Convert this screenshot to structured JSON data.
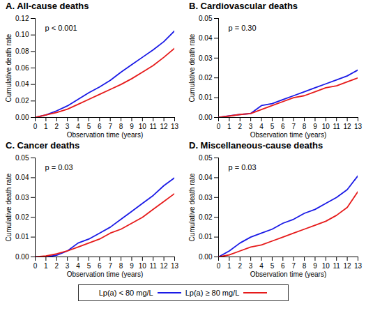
{
  "chart_data": [
    {
      "type": "line",
      "title": "A. All-cause deaths",
      "xlabel": "Observation time (years)",
      "ylabel": "Cumulative death rate",
      "x": [
        0,
        1,
        2,
        3,
        4,
        5,
        6,
        7,
        8,
        9,
        10,
        11,
        12,
        13
      ],
      "series": [
        {
          "name": "Lp(a) < 80 mg/L",
          "color": "#1a1ae6",
          "values": [
            0,
            0.003,
            0.008,
            0.014,
            0.022,
            0.03,
            0.037,
            0.045,
            0.055,
            0.064,
            0.073,
            0.082,
            0.092,
            0.105
          ]
        },
        {
          "name": "Lp(a) ≥ 80 mg/L",
          "color": "#e61a1a",
          "values": [
            0,
            0.003,
            0.006,
            0.01,
            0.016,
            0.022,
            0.028,
            0.034,
            0.04,
            0.047,
            0.055,
            0.063,
            0.073,
            0.084
          ]
        }
      ],
      "xlim": [
        0,
        13
      ],
      "xticks": [
        0,
        1,
        2,
        3,
        4,
        5,
        6,
        7,
        8,
        9,
        10,
        11,
        12,
        13
      ],
      "ylim": [
        0,
        0.12
      ],
      "yticks": [
        {
          "value": 0,
          "label": "0.00"
        },
        {
          "value": 0.02,
          "label": "0.02"
        },
        {
          "value": 0.04,
          "label": "0.04"
        },
        {
          "value": 0.06,
          "label": "0.06"
        },
        {
          "value": 0.08,
          "label": "0.08"
        },
        {
          "value": 0.1,
          "label": "0.10"
        },
        {
          "value": 0.12,
          "label": "0.12"
        }
      ],
      "annotations": [
        {
          "text": "p < 0.001"
        }
      ],
      "legend": "bottom"
    },
    {
      "type": "line",
      "title": "B. Cardiovascular deaths",
      "xlabel": "Observation time (years)",
      "ylabel": "Cumulative death rate",
      "x": [
        0,
        1,
        2,
        3,
        4,
        5,
        6,
        7,
        8,
        9,
        10,
        11,
        12,
        13
      ],
      "series": [
        {
          "name": "Lp(a) < 80 mg/L",
          "color": "#1a1ae6",
          "values": [
            0,
            0.0008,
            0.0015,
            0.002,
            0.006,
            0.007,
            0.009,
            0.011,
            0.013,
            0.015,
            0.017,
            0.019,
            0.021,
            0.024
          ]
        },
        {
          "name": "Lp(a) ≥ 80 mg/L",
          "color": "#e61a1a",
          "values": [
            0,
            0.0007,
            0.0015,
            0.002,
            0.004,
            0.006,
            0.008,
            0.01,
            0.011,
            0.013,
            0.015,
            0.016,
            0.018,
            0.02
          ]
        }
      ],
      "xlim": [
        0,
        13
      ],
      "xticks": [
        0,
        1,
        2,
        3,
        4,
        5,
        6,
        7,
        8,
        9,
        10,
        11,
        12,
        13
      ],
      "ylim": [
        0,
        0.05
      ],
      "yticks": [
        {
          "value": 0,
          "label": "0.00"
        },
        {
          "value": 0.01,
          "label": "0.01"
        },
        {
          "value": 0.02,
          "label": "0.02"
        },
        {
          "value": 0.03,
          "label": "0.03"
        },
        {
          "value": 0.04,
          "label": "0.04"
        },
        {
          "value": 0.05,
          "label": "0.05"
        }
      ],
      "annotations": [
        {
          "text": "p = 0.30"
        }
      ],
      "legend": "bottom"
    },
    {
      "type": "line",
      "title": "C. Cancer deaths",
      "xlabel": "Observation time (years)",
      "ylabel": "Cumulative death rate",
      "x": [
        0,
        1,
        2,
        3,
        4,
        5,
        6,
        7,
        8,
        9,
        10,
        11,
        12,
        13
      ],
      "series": [
        {
          "name": "Lp(a) < 80 mg/L",
          "color": "#1a1ae6",
          "values": [
            0,
            0,
            0.0008,
            0.003,
            0.007,
            0.009,
            0.012,
            0.015,
            0.019,
            0.023,
            0.027,
            0.031,
            0.036,
            0.04
          ]
        },
        {
          "name": "Lp(a) ≥ 80 mg/L",
          "color": "#e61a1a",
          "values": [
            0,
            0.0005,
            0.0015,
            0.003,
            0.005,
            0.007,
            0.009,
            0.012,
            0.014,
            0.017,
            0.02,
            0.024,
            0.028,
            0.032
          ]
        }
      ],
      "xlim": [
        0,
        13
      ],
      "xticks": [
        0,
        1,
        2,
        3,
        4,
        5,
        6,
        7,
        8,
        9,
        10,
        11,
        12,
        13
      ],
      "ylim": [
        0,
        0.05
      ],
      "yticks": [
        {
          "value": 0,
          "label": "0.00"
        },
        {
          "value": 0.01,
          "label": "0.01"
        },
        {
          "value": 0.02,
          "label": "0.02"
        },
        {
          "value": 0.03,
          "label": "0.03"
        },
        {
          "value": 0.04,
          "label": "0.04"
        },
        {
          "value": 0.05,
          "label": "0.05"
        }
      ],
      "annotations": [
        {
          "text": "p = 0.03"
        }
      ],
      "legend": "bottom"
    },
    {
      "type": "line",
      "title": "D. Miscellaneous-cause deaths",
      "xlabel": "Observation time (years)",
      "ylabel": "Cumulative death rate",
      "x": [
        0,
        1,
        2,
        3,
        4,
        5,
        6,
        7,
        8,
        9,
        10,
        11,
        12,
        13
      ],
      "series": [
        {
          "name": "Lp(a) < 80 mg/L",
          "color": "#1a1ae6",
          "values": [
            0,
            0.003,
            0.007,
            0.01,
            0.012,
            0.014,
            0.017,
            0.019,
            0.022,
            0.024,
            0.027,
            0.03,
            0.034,
            0.041
          ]
        },
        {
          "name": "Lp(a) ≥ 80 mg/L",
          "color": "#e61a1a",
          "values": [
            0,
            0.001,
            0.003,
            0.005,
            0.006,
            0.008,
            0.01,
            0.012,
            0.014,
            0.016,
            0.018,
            0.021,
            0.025,
            0.033
          ]
        }
      ],
      "xlim": [
        0,
        13
      ],
      "xticks": [
        0,
        1,
        2,
        3,
        4,
        5,
        6,
        7,
        8,
        9,
        10,
        11,
        12,
        13
      ],
      "ylim": [
        0,
        0.05
      ],
      "yticks": [
        {
          "value": 0,
          "label": "0.00"
        },
        {
          "value": 0.01,
          "label": "0.01"
        },
        {
          "value": 0.02,
          "label": "0.02"
        },
        {
          "value": 0.03,
          "label": "0.03"
        },
        {
          "value": 0.04,
          "label": "0.04"
        },
        {
          "value": 0.05,
          "label": "0.05"
        }
      ],
      "annotations": [
        {
          "text": "p = 0.03"
        }
      ],
      "legend": "bottom"
    }
  ]
}
